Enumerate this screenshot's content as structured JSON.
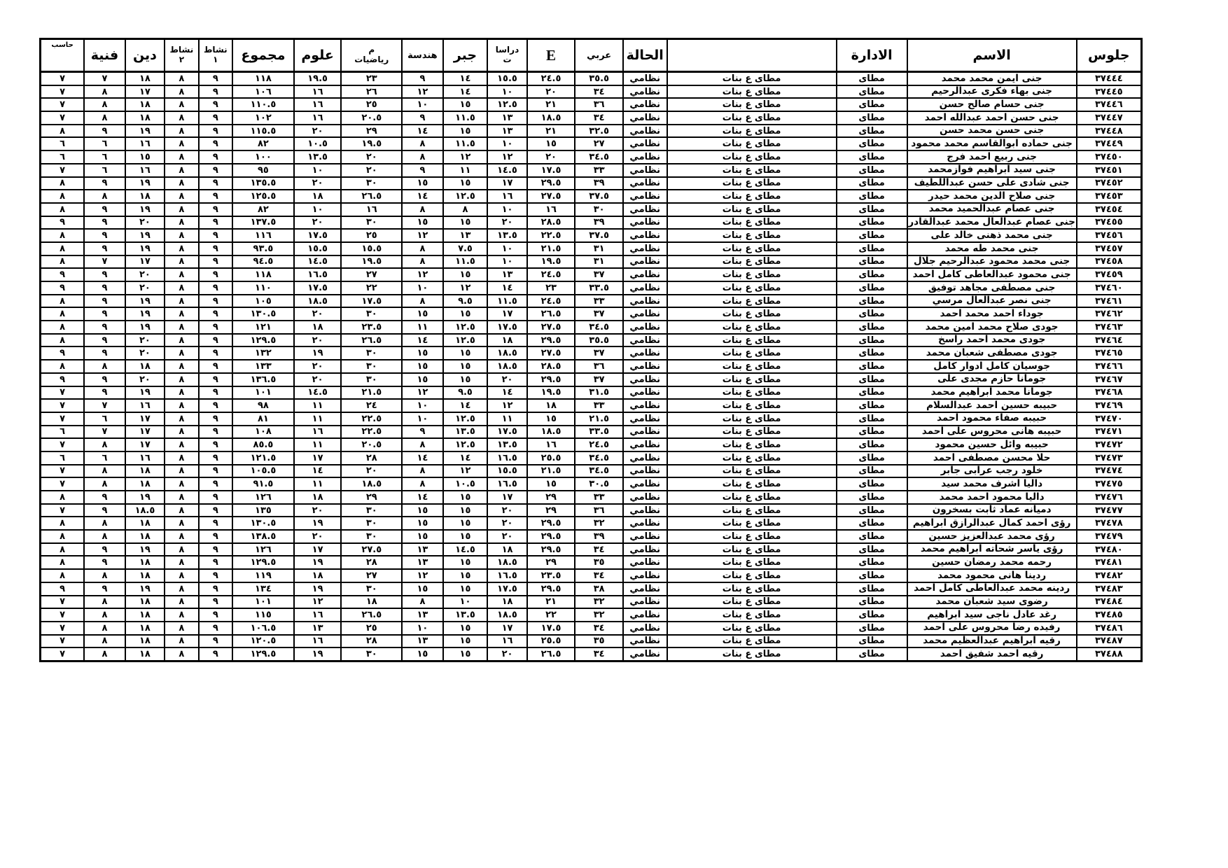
{
  "table": {
    "columns": [
      {
        "key": "seat",
        "label": "جلوس"
      },
      {
        "key": "name",
        "label": "الاسم"
      },
      {
        "key": "admin",
        "label": "الادارة"
      },
      {
        "key": "school",
        "label": ""
      },
      {
        "key": "status",
        "label": "الحالة"
      },
      {
        "key": "arabic",
        "label": "عربي"
      },
      {
        "key": "english",
        "label": "E"
      },
      {
        "key": "studies",
        "label": "دراسا\nت"
      },
      {
        "key": "algebra",
        "label": "جبر"
      },
      {
        "key": "geometry",
        "label": "هندسة"
      },
      {
        "key": "math",
        "label": "م\nرياضيات"
      },
      {
        "key": "science",
        "label": "علوم"
      },
      {
        "key": "total",
        "label": "مجموع"
      },
      {
        "key": "activity1",
        "label": "نشاط\n١"
      },
      {
        "key": "activity2",
        "label": "نشاط\n٢"
      },
      {
        "key": "religion",
        "label": "دين"
      },
      {
        "key": "art",
        "label": "فنية"
      },
      {
        "key": "computer",
        "label": "حاسب"
      }
    ],
    "rows": [
      [
        "٣٧٤٤٤",
        "جنى ايمن محمد محمد",
        "مطاى",
        "مطاى ع بنات",
        "نظامي",
        "٣٥.٥",
        "٢٤.٥",
        "١٥.٥",
        "١٤",
        "٩",
        "٢٣",
        "١٩.٥",
        "١١٨",
        "٩",
        "٨",
        "١٨",
        "٧",
        "٧"
      ],
      [
        "٣٧٤٤٥",
        "جنى بهاء فكرى عبدالرحيم",
        "مطاى",
        "مطاى ع بنات",
        "نظامي",
        "٣٤",
        "٢٠",
        "١٠",
        "١٤",
        "١٢",
        "٢٦",
        "١٦",
        "١٠٦",
        "٩",
        "٨",
        "١٧",
        "٨",
        "٧"
      ],
      [
        "٣٧٤٤٦",
        "جنى حسام صالح حسن",
        "مطاى",
        "مطاى ع بنات",
        "نظامي",
        "٣٦",
        "٢١",
        "١٢.٥",
        "١٥",
        "١٠",
        "٢٥",
        "١٦",
        "١١٠.٥",
        "٩",
        "٨",
        "١٨",
        "٨",
        "٧"
      ],
      [
        "٣٧٤٤٧",
        "جنى حسن احمد عبدالله احمد",
        "مطاى",
        "مطاى ع بنات",
        "نظامي",
        "٣٤",
        "١٨.٥",
        "١٣",
        "١١.٥",
        "٩",
        "٢٠.٥",
        "١٦",
        "١٠٢",
        "٩",
        "٨",
        "١٨",
        "٨",
        "٧"
      ],
      [
        "٣٧٤٤٨",
        "جنى حسن محمد حسن",
        "مطاى",
        "مطاى ع بنات",
        "نظامي",
        "٣٢.٥",
        "٢١",
        "١٣",
        "١٥",
        "١٤",
        "٢٩",
        "٢٠",
        "١١٥.٥",
        "٩",
        "٨",
        "١٩",
        "٩",
        "٨"
      ],
      [
        "٣٧٤٤٩",
        "جنى حماده ابوالقاسم محمد محمود",
        "مطاى",
        "مطاى ع بنات",
        "نظامي",
        "٢٧",
        "١٥",
        "١٠",
        "١١.٥",
        "٨",
        "١٩.٥",
        "١٠.٥",
        "٨٢",
        "٩",
        "٨",
        "١٦",
        "٦",
        "٦"
      ],
      [
        "٣٧٤٥٠",
        "جنى ربيع احمد فرج",
        "مطاى",
        "مطاى ع بنات",
        "نظامي",
        "٣٤.٥",
        "٢٠",
        "١٢",
        "١٢",
        "٨",
        "٢٠",
        "١٣.٥",
        "١٠٠",
        "٩",
        "٨",
        "١٥",
        "٦",
        "٦"
      ],
      [
        "٣٧٤٥١",
        "جنى سيد ابراهيم فوازمحمد",
        "مطاى",
        "مطاى ع بنات",
        "نظامي",
        "٣٣",
        "١٧.٥",
        "١٤.٥",
        "١١",
        "٩",
        "٢٠",
        "١٠",
        "٩٥",
        "٩",
        "٨",
        "١٦",
        "٦",
        "٧"
      ],
      [
        "٣٧٤٥٢",
        "جنى شادى على حسن عبداللطيف",
        "مطاى",
        "مطاى ع بنات",
        "نظامي",
        "٣٩",
        "٢٩.٥",
        "١٧",
        "١٥",
        "١٥",
        "٣٠",
        "٢٠",
        "١٣٥.٥",
        "٩",
        "٨",
        "١٩",
        "٩",
        "٨"
      ],
      [
        "٣٧٤٥٣",
        "جنى صلاح الدين محمد حيدر",
        "مطاى",
        "مطاى ع بنات",
        "نظامي",
        "٣٧.٥",
        "٢٧.٥",
        "١٦",
        "١٢.٥",
        "١٤",
        "٢٦.٥",
        "١٨",
        "١٢٥.٥",
        "٩",
        "٨",
        "١٨",
        "٨",
        "٨"
      ],
      [
        "٣٧٤٥٤",
        "جنى عصام عبدالحميد محمد",
        "مطاى",
        "مطاى ع بنات",
        "نظامي",
        "٣٠",
        "١٦",
        "١٠",
        "٨",
        "٨",
        "١٦",
        "١٠",
        "٨٢",
        "٩",
        "٨",
        "١٩",
        "٩",
        "٨"
      ],
      [
        "٣٧٤٥٥",
        "جنى عصام عبدالعال محمد عبدالقادر",
        "مطاى",
        "مطاى ع بنات",
        "نظامي",
        "٣٩",
        "٢٨.٥",
        "٢٠",
        "١٥",
        "١٥",
        "٣٠",
        "٢٠",
        "١٣٧.٥",
        "٩",
        "٨",
        "٢٠",
        "٩",
        "٩"
      ],
      [
        "٣٧٤٥٦",
        "جنى محمد ذهنى خالد على",
        "مطاى",
        "مطاى ع بنات",
        "نظامي",
        "٣٧.٥",
        "٢٢.٥",
        "١٣.٥",
        "١٣",
        "١٢",
        "٢٥",
        "١٧.٥",
        "١١٦",
        "٩",
        "٨",
        "١٩",
        "٩",
        "٨"
      ],
      [
        "٣٧٤٥٧",
        "جنى محمد طه محمد",
        "مطاى",
        "مطاى ع بنات",
        "نظامي",
        "٣١",
        "٢١.٥",
        "١٠",
        "٧.٥",
        "٨",
        "١٥.٥",
        "١٥.٥",
        "٩٣.٥",
        "٩",
        "٨",
        "١٩",
        "٩",
        "٨"
      ],
      [
        "٣٧٤٥٨",
        "جنى محمد محمود عبدالرحيم جلال",
        "مطاى",
        "مطاى ع بنات",
        "نظامي",
        "٣١",
        "١٩.٥",
        "١٠",
        "١١.٥",
        "٨",
        "١٩.٥",
        "١٤.٥",
        "٩٤.٥",
        "٩",
        "٨",
        "١٧",
        "٧",
        "٨"
      ],
      [
        "٣٧٤٥٩",
        "جنى محمود عبدالعاطى كامل احمد",
        "مطاى",
        "مطاى ع بنات",
        "نظامي",
        "٣٧",
        "٢٤.٥",
        "١٣",
        "١٥",
        "١٢",
        "٢٧",
        "١٦.٥",
        "١١٨",
        "٩",
        "٨",
        "٢٠",
        "٩",
        "٩"
      ],
      [
        "٣٧٤٦٠",
        "جنى مصطفى مجاهد توفيق",
        "مطاى",
        "مطاى ع بنات",
        "نظامي",
        "٣٣.٥",
        "٢٣",
        "١٤",
        "١٢",
        "١٠",
        "٢٢",
        "١٧.٥",
        "١١٠",
        "٩",
        "٨",
        "٢٠",
        "٩",
        "٩"
      ],
      [
        "٣٧٤٦١",
        "جنى نصر عبدالعال مرسي",
        "مطاى",
        "مطاى ع بنات",
        "نظامي",
        "٣٣",
        "٢٤.٥",
        "١١.٥",
        "٩.٥",
        "٨",
        "١٧.٥",
        "١٨.٥",
        "١٠٥",
        "٩",
        "٨",
        "١٩",
        "٩",
        "٨"
      ],
      [
        "٣٧٤٦٢",
        "جوداء احمد محمد احمد",
        "مطاى",
        "مطاى ع بنات",
        "نظامي",
        "٣٧",
        "٢٦.٥",
        "١٧",
        "١٥",
        "١٥",
        "٣٠",
        "٢٠",
        "١٣٠.٥",
        "٩",
        "٨",
        "١٩",
        "٩",
        "٨"
      ],
      [
        "٣٧٤٦٣",
        "جودى صلاح محمد امين محمد",
        "مطاى",
        "مطاى ع بنات",
        "نظامي",
        "٣٤.٥",
        "٢٧.٥",
        "١٧.٥",
        "١٢.٥",
        "١١",
        "٢٣.٥",
        "١٨",
        "١٢١",
        "٩",
        "٨",
        "١٩",
        "٩",
        "٨"
      ],
      [
        "٣٧٤٦٤",
        "جودى محمد احمد راسخ",
        "مطاى",
        "مطاى ع بنات",
        "نظامي",
        "٣٥.٥",
        "٢٩.٥",
        "١٨",
        "١٢.٥",
        "١٤",
        "٢٦.٥",
        "٢٠",
        "١٢٩.٥",
        "٩",
        "٨",
        "٢٠",
        "٩",
        "٨"
      ],
      [
        "٣٧٤٦٥",
        "جودى مصطفى شعبان محمد",
        "مطاى",
        "مطاى ع بنات",
        "نظامي",
        "٣٧",
        "٢٧.٥",
        "١٨.٥",
        "١٥",
        "١٥",
        "٣٠",
        "١٩",
        "١٣٢",
        "٩",
        "٨",
        "٢٠",
        "٩",
        "٩"
      ],
      [
        "٣٧٤٦٦",
        "جوسيان كامل ادوار كامل",
        "مطاى",
        "مطاى ع بنات",
        "نظامي",
        "٣٦",
        "٢٨.٥",
        "١٨.٥",
        "١٥",
        "١٥",
        "٣٠",
        "٢٠",
        "١٣٣",
        "٩",
        "٨",
        "١٨",
        "٨",
        "٨"
      ],
      [
        "٣٧٤٦٧",
        "جومانا حازم مجدى على",
        "مطاى",
        "مطاى ع بنات",
        "نظامي",
        "٣٧",
        "٢٩.٥",
        "٢٠",
        "١٥",
        "١٥",
        "٣٠",
        "٢٠",
        "١٣٦.٥",
        "٩",
        "٨",
        "٢٠",
        "٩",
        "٩"
      ],
      [
        "٣٧٤٦٨",
        "جومانا محمد ابراهيم محمد",
        "مطاى",
        "مطاى ع بنات",
        "نظامي",
        "٣١.٥",
        "١٩.٥",
        "١٤",
        "٩.٥",
        "١٢",
        "٢١.٥",
        "١٤.٥",
        "١٠١",
        "٩",
        "٨",
        "١٩",
        "٩",
        "٧"
      ],
      [
        "٣٧٤٦٩",
        "حبيبه حسين احمد عبدالسلام",
        "مطاى",
        "مطاى ع بنات",
        "نظامي",
        "٣٣",
        "١٨",
        "١٢",
        "١٤",
        "١٠",
        "٢٤",
        "١١",
        "٩٨",
        "٩",
        "٨",
        "١٦",
        "٧",
        "٧"
      ],
      [
        "٣٧٤٧٠",
        "حبيبه صفاء محمود احمد",
        "مطاى",
        "مطاى ع بنات",
        "نظامي",
        "٢١.٥",
        "١٥",
        "١١",
        "١٢.٥",
        "١٠",
        "٢٢.٥",
        "١١",
        "٨١",
        "٩",
        "٨",
        "١٧",
        "٦",
        "٧"
      ],
      [
        "٣٧٤٧١",
        "حبيبه هانى محروس على احمد",
        "مطاى",
        "مطاى ع بنات",
        "نظامي",
        "٣٣.٥",
        "١٨.٥",
        "١٧.٥",
        "١٣.٥",
        "٩",
        "٢٢.٥",
        "١٦",
        "١٠٨",
        "٩",
        "٨",
        "١٧",
        "٧",
        "٦"
      ],
      [
        "٣٧٤٧٢",
        "حبيبه وائل حسين محمود",
        "مطاى",
        "مطاى ع بنات",
        "نظامي",
        "٢٤.٥",
        "١٦",
        "١٣.٥",
        "١٢.٥",
        "٨",
        "٢٠.٥",
        "١١",
        "٨٥.٥",
        "٩",
        "٨",
        "١٧",
        "٨",
        "٧"
      ],
      [
        "٣٧٤٧٣",
        "حلا محسن مصطفى احمد",
        "مطاى",
        "مطاى ع بنات",
        "نظامي",
        "٣٤.٥",
        "٢٥.٥",
        "١٦.٥",
        "١٤",
        "١٤",
        "٢٨",
        "١٧",
        "١٢١.٥",
        "٩",
        "٨",
        "١٦",
        "٦",
        "٦"
      ],
      [
        "٣٧٤٧٤",
        "خلود رجب عرابى جابر",
        "مطاى",
        "مطاى ع بنات",
        "نظامي",
        "٣٤.٥",
        "٢١.٥",
        "١٥.٥",
        "١٢",
        "٨",
        "٢٠",
        "١٤",
        "١٠٥.٥",
        "٩",
        "٨",
        "١٨",
        "٨",
        "٧"
      ],
      [
        "٣٧٤٧٥",
        "داليا اشرف محمد سيد",
        "مطاى",
        "مطاى ع بنات",
        "نظامي",
        "٣٠.٥",
        "١٥",
        "١٦.٥",
        "١٠.٥",
        "٨",
        "١٨.٥",
        "١١",
        "٩١.٥",
        "٩",
        "٨",
        "١٨",
        "٨",
        "٧"
      ],
      [
        "٣٧٤٧٦",
        "داليا محمود احمد محمد",
        "مطاى",
        "مطاى ع بنات",
        "نظامي",
        "٣٣",
        "٢٩",
        "١٧",
        "١٥",
        "١٤",
        "٢٩",
        "١٨",
        "١٢٦",
        "٩",
        "٨",
        "١٩",
        "٩",
        "٨"
      ],
      [
        "٣٧٤٧٧",
        "دميانه عماد ثابت بسخرون",
        "مطاى",
        "مطاى ع بنات",
        "نظامي",
        "٣٦",
        "٢٩",
        "٢٠",
        "١٥",
        "١٥",
        "٣٠",
        "٢٠",
        "١٣٥",
        "٩",
        "٨",
        "١٨.٥",
        "٩",
        "٧"
      ],
      [
        "٣٧٤٧٨",
        "رؤى احمد كمال عبدالرازق ابراهيم",
        "مطاى",
        "مطاى ع بنات",
        "نظامي",
        "٣٢",
        "٢٩.٥",
        "٢٠",
        "١٥",
        "١٥",
        "٣٠",
        "١٩",
        "١٣٠.٥",
        "٩",
        "٨",
        "١٨",
        "٨",
        "٨"
      ],
      [
        "٣٧٤٧٩",
        "رؤى محمد عبدالعزيز حسين",
        "مطاى",
        "مطاى ع بنات",
        "نظامي",
        "٣٩",
        "٢٩.٥",
        "٢٠",
        "١٥",
        "١٥",
        "٣٠",
        "٢٠",
        "١٣٨.٥",
        "٩",
        "٨",
        "١٨",
        "٨",
        "٨"
      ],
      [
        "٣٧٤٨٠",
        "رؤى ياسر شحاته ابراهيم محمد",
        "مطاى",
        "مطاى ع بنات",
        "نظامي",
        "٣٤",
        "٢٩.٥",
        "١٨",
        "١٤.٥",
        "١٣",
        "٢٧.٥",
        "١٧",
        "١٢٦",
        "٩",
        "٨",
        "١٩",
        "٩",
        "٨"
      ],
      [
        "٣٧٤٨١",
        "رحمه محمد رمضان حسين",
        "مطاى",
        "مطاى ع بنات",
        "نظامي",
        "٣٥",
        "٢٩",
        "١٨.٥",
        "١٥",
        "١٣",
        "٢٨",
        "١٩",
        "١٢٩.٥",
        "٩",
        "٨",
        "١٨",
        "٩",
        "٨"
      ],
      [
        "٣٧٤٨٢",
        "ردينا هانى محمود محمد",
        "مطاى",
        "مطاى ع بنات",
        "نظامي",
        "٣٤",
        "٢٣.٥",
        "١٦.٥",
        "١٥",
        "١٢",
        "٢٧",
        "١٨",
        "١١٩",
        "٩",
        "٨",
        "١٨",
        "٨",
        "٨"
      ],
      [
        "٣٧٤٨٣",
        "ردينه محمد عبدالعاطى كامل احمد",
        "مطاى",
        "مطاى ع بنات",
        "نظامي",
        "٣٨",
        "٢٩.٥",
        "١٧.٥",
        "١٥",
        "١٥",
        "٣٠",
        "١٩",
        "١٣٤",
        "٩",
        "٨",
        "١٩",
        "٩",
        "٩"
      ],
      [
        "٣٧٤٨٤",
        "رضوى سيد شعبان محمد",
        "مطاى",
        "مطاى ع بنات",
        "نظامي",
        "٣٢",
        "٢١",
        "١٨",
        "١٠",
        "٨",
        "١٨",
        "١٢",
        "١٠١",
        "٩",
        "٨",
        "١٨",
        "٨",
        "٧"
      ],
      [
        "٣٧٤٨٥",
        "رغد عادل ناجى سيد ابراهيم",
        "مطاى",
        "مطاى ع بنات",
        "نظامي",
        "٣٢",
        "٢٢",
        "١٨.٥",
        "١٣.٥",
        "١٣",
        "٢٦.٥",
        "١٦",
        "١١٥",
        "٩",
        "٨",
        "١٨",
        "٨",
        "٧"
      ],
      [
        "٣٧٤٨٦",
        "رفيده رضا محروس على احمد",
        "مطاى",
        "مطاى ع بنات",
        "نظامي",
        "٣٤",
        "١٧.٥",
        "١٧",
        "١٥",
        "١٠",
        "٢٥",
        "١٣",
        "١٠٦.٥",
        "٩",
        "٨",
        "١٨",
        "٨",
        "٧"
      ],
      [
        "٣٧٤٨٧",
        "رقيه ابراهيم عبدالعظيم محمد",
        "مطاى",
        "مطاى ع بنات",
        "نظامي",
        "٣٥",
        "٢٥.٥",
        "١٦",
        "١٥",
        "١٣",
        "٢٨",
        "١٦",
        "١٢٠.٥",
        "٩",
        "٨",
        "١٨",
        "٨",
        "٧"
      ],
      [
        "٣٧٤٨٨",
        "رقيه احمد شفيق احمد",
        "مطاى",
        "مطاى ع بنات",
        "نظامي",
        "٣٤",
        "٢٦.٥",
        "٢٠",
        "١٥",
        "١٥",
        "٣٠",
        "١٩",
        "١٢٩.٥",
        "٩",
        "٨",
        "١٨",
        "٨",
        "٧"
      ]
    ]
  }
}
